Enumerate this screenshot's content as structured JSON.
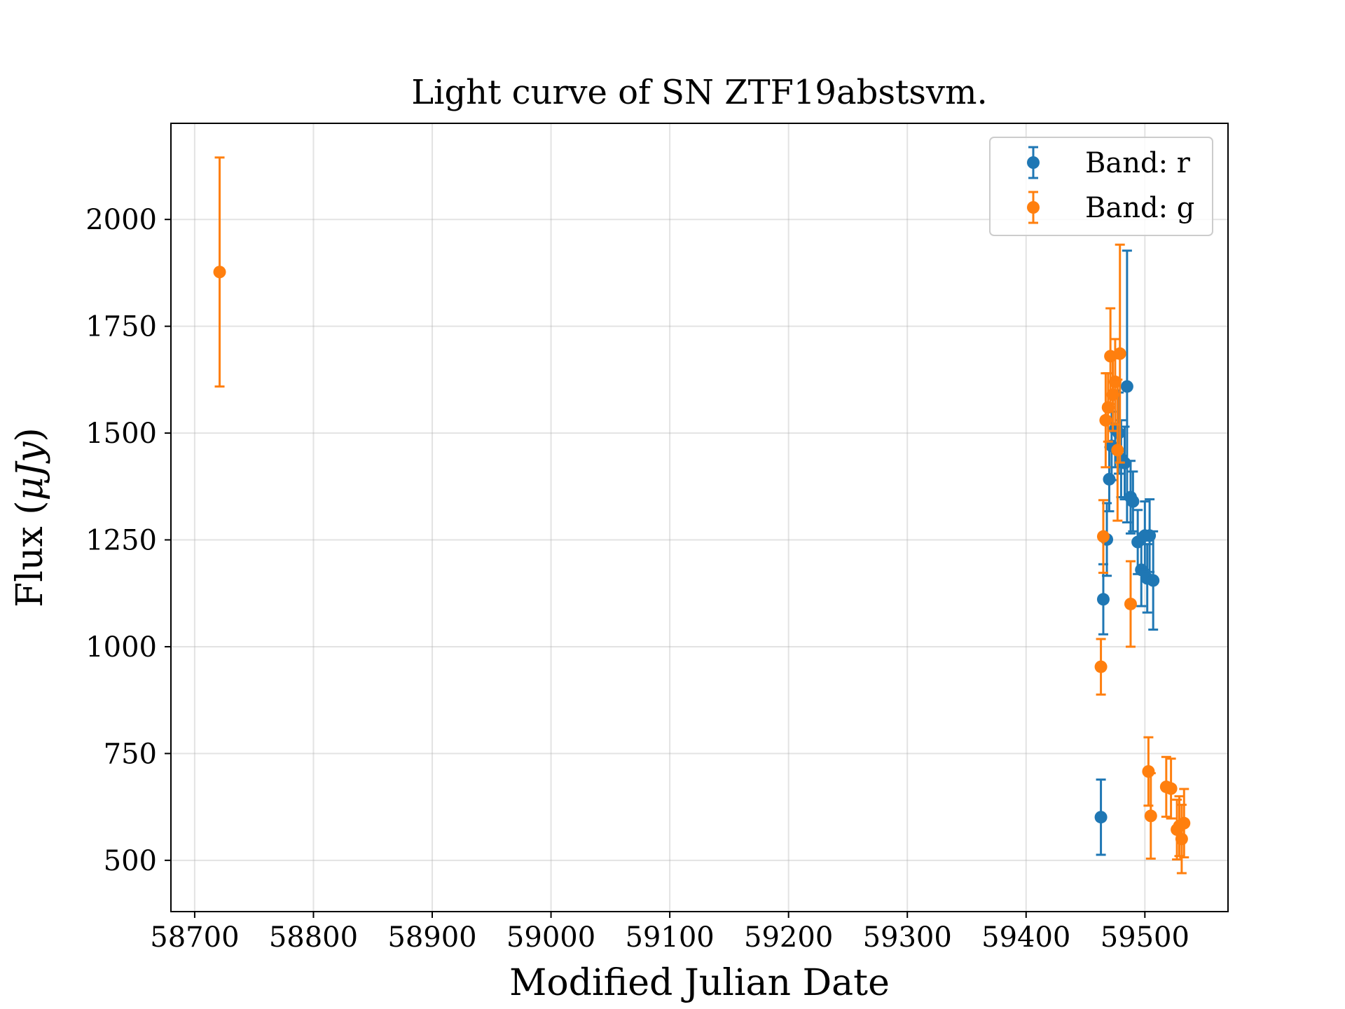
{
  "chart_data": {
    "type": "scatter",
    "title": "Light curve of SN ZTF19abstsvm.",
    "xlabel": "Modified Julian Date",
    "ylabel_prefix": "Flux (",
    "ylabel_unit": "μJy",
    "ylabel_suffix": ")",
    "xlim": [
      58680,
      59570
    ],
    "ylim": [
      380,
      2225
    ],
    "xticks": [
      58700,
      58800,
      58900,
      59000,
      59100,
      59200,
      59300,
      59400,
      59500
    ],
    "yticks": [
      500,
      750,
      1000,
      1250,
      1500,
      1750,
      2000
    ],
    "grid": true,
    "legend_position": "top-right",
    "series": [
      {
        "name": "Band: r",
        "color": "#1f77b4",
        "points": [
          {
            "x": 59463,
            "y": 601,
            "err": 88
          },
          {
            "x": 59465,
            "y": 1111,
            "err": 82
          },
          {
            "x": 59468,
            "y": 1251,
            "err": 85
          },
          {
            "x": 59470,
            "y": 1392,
            "err": 75
          },
          {
            "x": 59472,
            "y": 1470,
            "err": 80
          },
          {
            "x": 59475,
            "y": 1510,
            "err": 90
          },
          {
            "x": 59478,
            "y": 1500,
            "err": 95
          },
          {
            "x": 59480,
            "y": 1440,
            "err": 90
          },
          {
            "x": 59483,
            "y": 1430,
            "err": 85
          },
          {
            "x": 59485,
            "y": 1609,
            "err": 318
          },
          {
            "x": 59488,
            "y": 1350,
            "err": 85
          },
          {
            "x": 59490,
            "y": 1340,
            "err": 70
          },
          {
            "x": 59494,
            "y": 1245,
            "err": 75
          },
          {
            "x": 59497,
            "y": 1180,
            "err": 85
          },
          {
            "x": 59500,
            "y": 1260,
            "err": 80
          },
          {
            "x": 59502,
            "y": 1160,
            "err": 80
          },
          {
            "x": 59504,
            "y": 1260,
            "err": 85
          },
          {
            "x": 59507,
            "y": 1155,
            "err": 115
          }
        ]
      },
      {
        "name": "Band: g",
        "color": "#ff7f0e",
        "points": [
          {
            "x": 58721,
            "y": 1877,
            "err": 268
          },
          {
            "x": 59463,
            "y": 953,
            "err": 65
          },
          {
            "x": 59465,
            "y": 1258,
            "err": 85
          },
          {
            "x": 59467,
            "y": 1530,
            "err": 110
          },
          {
            "x": 59469,
            "y": 1560,
            "err": 80
          },
          {
            "x": 59471,
            "y": 1680,
            "err": 112
          },
          {
            "x": 59473,
            "y": 1590,
            "err": 85
          },
          {
            "x": 59475,
            "y": 1620,
            "err": 100
          },
          {
            "x": 59477,
            "y": 1460,
            "err": 165
          },
          {
            "x": 59479,
            "y": 1686,
            "err": 255
          },
          {
            "x": 59488,
            "y": 1100,
            "err": 100
          },
          {
            "x": 59503,
            "y": 708,
            "err": 80
          },
          {
            "x": 59505,
            "y": 604,
            "err": 100
          },
          {
            "x": 59518,
            "y": 672,
            "err": 70
          },
          {
            "x": 59522,
            "y": 668,
            "err": 70
          },
          {
            "x": 59527,
            "y": 572,
            "err": 70
          },
          {
            "x": 59529,
            "y": 580,
            "err": 70
          },
          {
            "x": 59531,
            "y": 550,
            "err": 80
          },
          {
            "x": 59533,
            "y": 587,
            "err": 80
          }
        ]
      }
    ]
  }
}
